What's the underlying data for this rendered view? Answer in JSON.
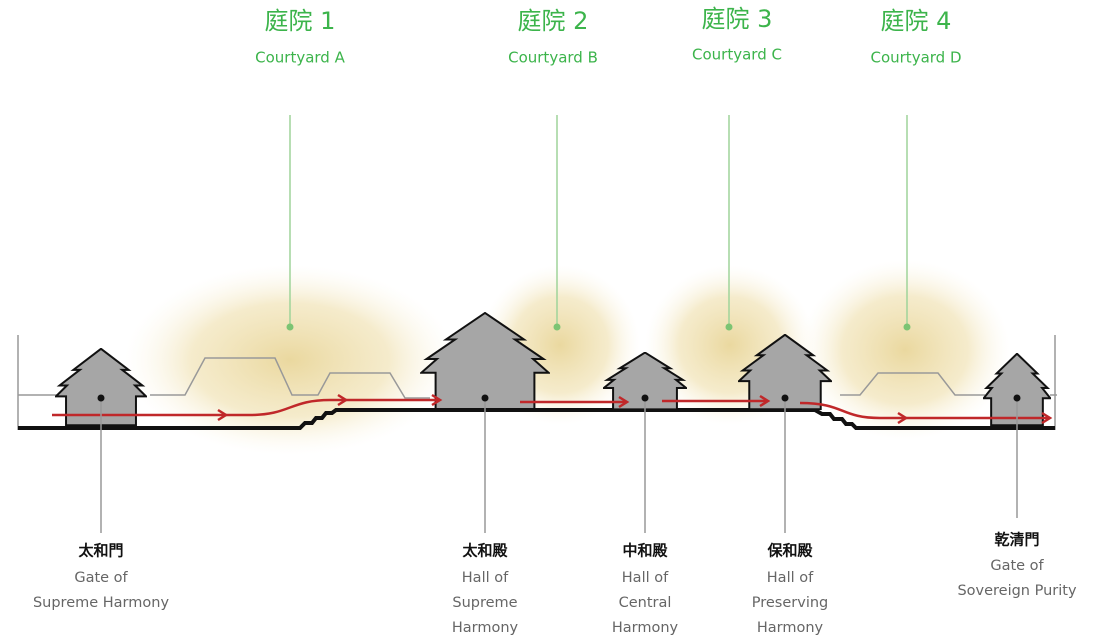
{
  "courtyards": [
    {
      "label": "庭院 1",
      "name": "Courtyard A"
    },
    {
      "label": "庭院 2",
      "name": "Courtyard B"
    },
    {
      "label": "庭院 3",
      "name": "Courtyard C"
    },
    {
      "label": "庭院 4",
      "name": "Courtyard D"
    }
  ],
  "buildings": [
    {
      "name": "太和門",
      "english": [
        "Gate of",
        "Supreme Harmony"
      ]
    },
    {
      "name": "太和殿",
      "english": [
        "Hall of",
        "Supreme",
        "Harmony"
      ]
    },
    {
      "name": "中和殿",
      "english": [
        "Hall of",
        "Central",
        "Harmony"
      ]
    },
    {
      "name": "保和殿",
      "english": [
        "Hall of",
        "Preserving",
        "Harmony"
      ]
    },
    {
      "name": "乾清門",
      "english": [
        "Gate of",
        "Sovereign Purity"
      ]
    }
  ]
}
